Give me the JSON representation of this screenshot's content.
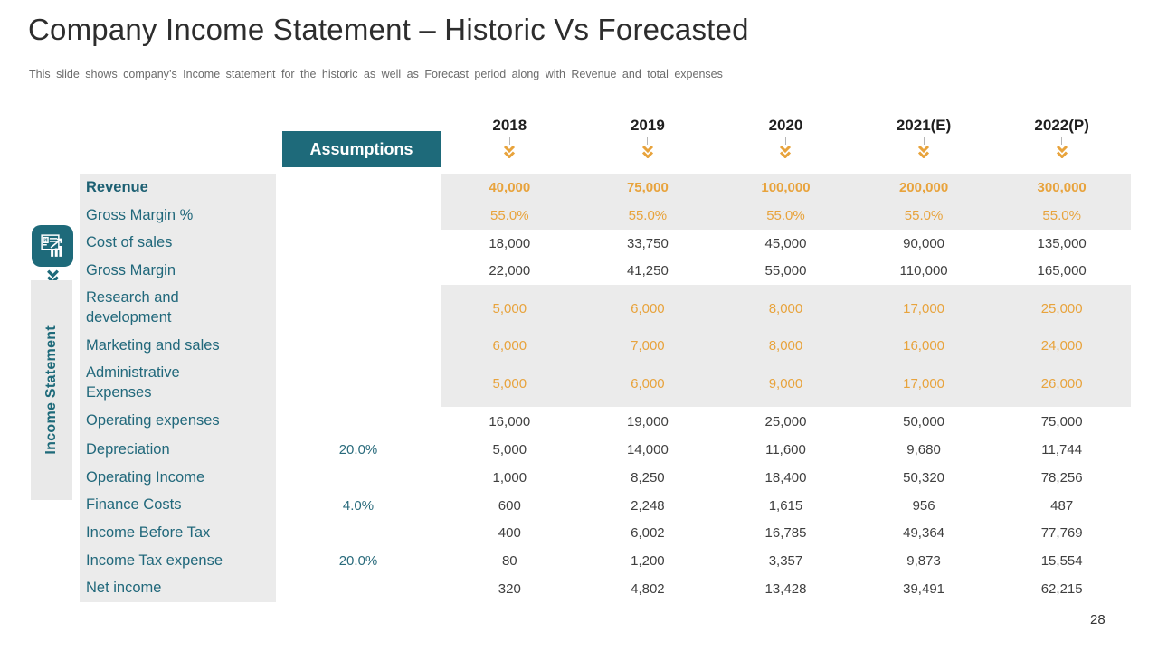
{
  "slide": {
    "title": "Company Income Statement – Historic Vs Forecasted",
    "subtitle": "This slide shows company’s Income statement for the historic as well as Forecast period along with Revenue and total expenses",
    "page_number": "28"
  },
  "sidebar": {
    "label": "Income Statement",
    "icon": "financial-statement-icon"
  },
  "colors": {
    "teal": "#1E6A7A",
    "orange": "#E8A33C",
    "band_gray": "#EBEBEB"
  },
  "table": {
    "assumptions_header": "Assumptions",
    "years": [
      "2018",
      "2019",
      "2020",
      "2021(E)",
      "2022(P)"
    ],
    "rows": [
      {
        "label": "Revenue",
        "assumption": "",
        "values": [
          "40,000",
          "75,000",
          "100,000",
          "200,000",
          "300,000"
        ],
        "band": "gray",
        "value_style": "orange-bold",
        "label_bold": true
      },
      {
        "label": "Gross Margin %",
        "assumption": "",
        "values": [
          "55.0%",
          "55.0%",
          "55.0%",
          "55.0%",
          "55.0%"
        ],
        "band": "gray",
        "value_style": "orange",
        "label_bold": false
      },
      {
        "label": "Cost of sales",
        "assumption": "",
        "values": [
          "18,000",
          "33,750",
          "45,000",
          "90,000",
          "135,000"
        ],
        "band": "white",
        "value_style": "dark",
        "label_bold": false
      },
      {
        "label": "Gross Margin",
        "assumption": "",
        "values": [
          "22,000",
          "41,250",
          "55,000",
          "110,000",
          "165,000"
        ],
        "band": "white",
        "value_style": "dark",
        "label_bold": false
      },
      {
        "label": "Research and development",
        "assumption": "",
        "values": [
          "5,000",
          "6,000",
          "8,000",
          "17,000",
          "25,000"
        ],
        "band": "gray",
        "value_style": "orange",
        "label_bold": false
      },
      {
        "label": "Marketing and sales",
        "assumption": "",
        "values": [
          "6,000",
          "7,000",
          "8,000",
          "16,000",
          "24,000"
        ],
        "band": "gray",
        "value_style": "orange",
        "label_bold": false
      },
      {
        "label": "Administrative Expenses",
        "assumption": "",
        "values": [
          "5,000",
          "6,000",
          "9,000",
          "17,000",
          "26,000"
        ],
        "band": "gray",
        "value_style": "orange",
        "label_bold": false
      },
      {
        "label": "Operating expenses",
        "assumption": "",
        "values": [
          "16,000",
          "19,000",
          "25,000",
          "50,000",
          "75,000"
        ],
        "band": "white",
        "value_style": "dark",
        "label_bold": false
      },
      {
        "label": "Depreciation",
        "assumption": "20.0%",
        "values": [
          "5,000",
          "14,000",
          "11,600",
          "9,680",
          "11,744"
        ],
        "band": "white",
        "value_style": "dark",
        "label_bold": false
      },
      {
        "label": "Operating Income",
        "assumption": "",
        "values": [
          "1,000",
          "8,250",
          "18,400",
          "50,320",
          "78,256"
        ],
        "band": "white",
        "value_style": "dark",
        "label_bold": false
      },
      {
        "label": "Finance Costs",
        "assumption": "4.0%",
        "values": [
          "600",
          "2,248",
          "1,615",
          "956",
          "487"
        ],
        "band": "white",
        "value_style": "dark",
        "label_bold": false
      },
      {
        "label": "Income Before Tax",
        "assumption": "",
        "values": [
          "400",
          "6,002",
          "16,785",
          "49,364",
          "77,769"
        ],
        "band": "white",
        "value_style": "dark",
        "label_bold": false
      },
      {
        "label": "Income Tax expense",
        "assumption": "20.0%",
        "values": [
          "80",
          "1,200",
          "3,357",
          "9,873",
          "15,554"
        ],
        "band": "white",
        "value_style": "dark",
        "label_bold": false
      },
      {
        "label": "Net income",
        "assumption": "",
        "values": [
          "320",
          "4,802",
          "13,428",
          "39,491",
          "62,215"
        ],
        "band": "white",
        "value_style": "dark",
        "label_bold": false
      }
    ]
  }
}
